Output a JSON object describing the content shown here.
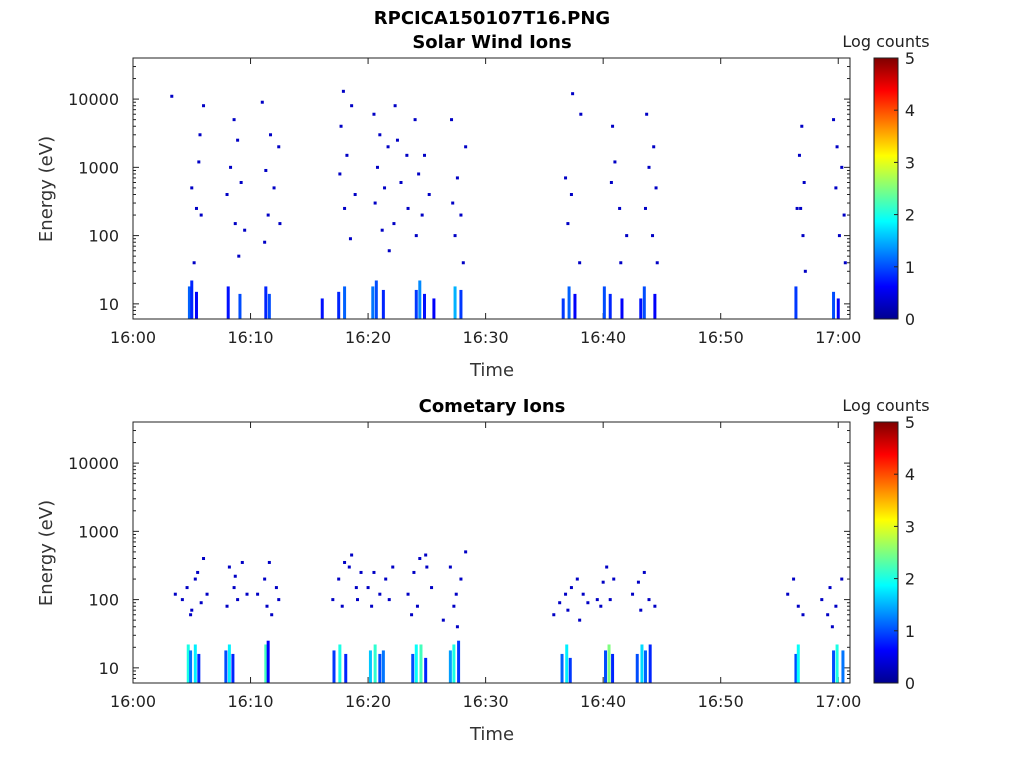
{
  "figure": {
    "filename": "RPCICA150107T16.PNG"
  },
  "colorbar": {
    "label": "Log counts",
    "ticks": [
      "0",
      "1",
      "2",
      "3",
      "4",
      "5"
    ],
    "colors": [
      "#00008f",
      "#0000ff",
      "#007fff",
      "#00ffff",
      "#7fff7f",
      "#ffff00",
      "#ff7f00",
      "#ff0000",
      "#7f0000"
    ]
  },
  "chart_data": [
    {
      "type": "heatmap",
      "title": "Solar Wind Ions",
      "xlabel": "Time",
      "ylabel": "Energy (eV)",
      "x_unit": "minutes after 16:00",
      "xlim": [
        0,
        61
      ],
      "ylim": [
        6,
        40000
      ],
      "y_scale": "log",
      "x_ticks": [
        "16:00",
        "16:10",
        "16:20",
        "16:30",
        "16:40",
        "16:50",
        "17:00"
      ],
      "y_ticks": [
        "10",
        "100",
        "1000",
        "10000"
      ],
      "clim": [
        0,
        5
      ],
      "scattered_points": [
        [
          3.3,
          11000,
          0.3
        ],
        [
          6.0,
          8000,
          0.3
        ],
        [
          5.7,
          3000,
          0.3
        ],
        [
          5.6,
          1200,
          0.3
        ],
        [
          5.0,
          500,
          0.3
        ],
        [
          5.4,
          250,
          0.3
        ],
        [
          5.8,
          200,
          0.3
        ],
        [
          5.2,
          40,
          0.3
        ],
        [
          8.6,
          5000,
          0.3
        ],
        [
          8.9,
          2500,
          0.3
        ],
        [
          8.3,
          1000,
          0.3
        ],
        [
          9.2,
          600,
          0.3
        ],
        [
          8.0,
          400,
          0.3
        ],
        [
          8.7,
          150,
          0.3
        ],
        [
          9.5,
          120,
          0.3
        ],
        [
          9.0,
          50,
          0.3
        ],
        [
          11.0,
          9000,
          0.3
        ],
        [
          11.7,
          3000,
          0.3
        ],
        [
          12.4,
          2000,
          0.3
        ],
        [
          11.3,
          900,
          0.3
        ],
        [
          12.0,
          500,
          0.3
        ],
        [
          11.5,
          200,
          0.3
        ],
        [
          12.5,
          150,
          0.3
        ],
        [
          11.2,
          80,
          0.3
        ],
        [
          17.9,
          13000,
          0.3
        ],
        [
          18.6,
          8000,
          0.3
        ],
        [
          17.7,
          4000,
          0.3
        ],
        [
          18.2,
          1500,
          0.3
        ],
        [
          17.6,
          800,
          0.3
        ],
        [
          18.9,
          400,
          0.3
        ],
        [
          18.0,
          250,
          0.3
        ],
        [
          18.5,
          90,
          0.3
        ],
        [
          20.5,
          6000,
          0.3
        ],
        [
          21.0,
          3000,
          0.3
        ],
        [
          21.7,
          2000,
          0.3
        ],
        [
          20.8,
          1000,
          0.3
        ],
        [
          21.4,
          500,
          0.3
        ],
        [
          20.6,
          300,
          0.3
        ],
        [
          21.2,
          120,
          0.3
        ],
        [
          21.8,
          60,
          0.3
        ],
        [
          22.3,
          8000,
          0.3
        ],
        [
          22.5,
          2500,
          0.3
        ],
        [
          23.3,
          1500,
          0.3
        ],
        [
          22.8,
          600,
          0.3
        ],
        [
          23.4,
          250,
          0.3
        ],
        [
          22.2,
          150,
          0.3
        ],
        [
          24.0,
          5000,
          0.3
        ],
        [
          24.8,
          1500,
          0.3
        ],
        [
          24.3,
          800,
          0.3
        ],
        [
          25.2,
          400,
          0.3
        ],
        [
          24.6,
          200,
          0.3
        ],
        [
          24.1,
          100,
          0.3
        ],
        [
          27.1,
          5000,
          0.3
        ],
        [
          28.3,
          2000,
          0.3
        ],
        [
          27.6,
          700,
          0.3
        ],
        [
          27.2,
          300,
          0.3
        ],
        [
          27.9,
          200,
          0.3
        ],
        [
          27.4,
          100,
          0.3
        ],
        [
          28.1,
          40,
          0.3
        ],
        [
          37.4,
          12000,
          0.3
        ],
        [
          38.1,
          6000,
          0.3
        ],
        [
          36.8,
          700,
          0.3
        ],
        [
          37.3,
          400,
          0.3
        ],
        [
          37.0,
          150,
          0.3
        ],
        [
          38.0,
          40,
          0.3
        ],
        [
          40.8,
          4000,
          0.3
        ],
        [
          41.0,
          1200,
          0.3
        ],
        [
          40.7,
          600,
          0.3
        ],
        [
          41.4,
          250,
          0.3
        ],
        [
          42.0,
          100,
          0.3
        ],
        [
          41.5,
          40,
          0.3
        ],
        [
          43.7,
          6000,
          0.3
        ],
        [
          44.3,
          2000,
          0.3
        ],
        [
          43.9,
          1000,
          0.3
        ],
        [
          44.5,
          500,
          0.3
        ],
        [
          43.6,
          250,
          0.3
        ],
        [
          44.2,
          100,
          0.3
        ],
        [
          44.6,
          40,
          0.3
        ],
        [
          56.5,
          250,
          0.3
        ],
        [
          56.9,
          4000,
          0.3
        ],
        [
          56.7,
          1500,
          0.3
        ],
        [
          57.1,
          600,
          0.3
        ],
        [
          56.8,
          250,
          0.3
        ],
        [
          57.0,
          100,
          0.3
        ],
        [
          57.2,
          30,
          0.3
        ],
        [
          59.6,
          5000,
          0.3
        ],
        [
          59.9,
          2000,
          0.3
        ],
        [
          60.3,
          1000,
          0.3
        ],
        [
          59.8,
          500,
          0.3
        ],
        [
          60.5,
          200,
          0.3
        ],
        [
          60.1,
          100,
          0.3
        ],
        [
          60.6,
          40,
          0.3
        ]
      ],
      "low_energy_bars": [
        [
          4.8,
          6,
          18,
          1.1
        ],
        [
          5.0,
          6,
          22,
          0.8
        ],
        [
          5.4,
          6,
          15,
          0.6
        ],
        [
          8.1,
          6,
          18,
          0.7
        ],
        [
          9.1,
          6,
          14,
          1.0
        ],
        [
          11.3,
          6,
          18,
          0.8
        ],
        [
          11.6,
          6,
          14,
          1.0
        ],
        [
          16.1,
          6,
          12,
          0.7
        ],
        [
          17.5,
          6,
          15,
          0.8
        ],
        [
          18.0,
          6,
          18,
          1.1
        ],
        [
          20.4,
          6,
          18,
          1.2
        ],
        [
          20.7,
          6,
          22,
          1.0
        ],
        [
          21.3,
          6,
          16,
          0.8
        ],
        [
          24.1,
          6,
          16,
          0.9
        ],
        [
          24.4,
          6,
          22,
          1.3
        ],
        [
          24.8,
          6,
          14,
          0.7
        ],
        [
          25.6,
          6,
          12,
          0.6
        ],
        [
          27.4,
          6,
          18,
          1.5
        ],
        [
          27.9,
          6,
          16,
          0.9
        ],
        [
          36.6,
          6,
          12,
          0.9
        ],
        [
          37.1,
          6,
          18,
          1.1
        ],
        [
          37.6,
          6,
          14,
          0.6
        ],
        [
          40.1,
          6,
          18,
          1.0
        ],
        [
          40.6,
          6,
          14,
          0.8
        ],
        [
          41.6,
          6,
          12,
          0.6
        ],
        [
          43.2,
          6,
          12,
          0.7
        ],
        [
          43.5,
          6,
          18,
          1.0
        ],
        [
          44.4,
          6,
          14,
          0.6
        ],
        [
          56.4,
          6,
          18,
          0.9
        ],
        [
          59.6,
          6,
          15,
          1.0
        ],
        [
          60.0,
          6,
          12,
          0.6
        ]
      ]
    },
    {
      "type": "heatmap",
      "title": "Cometary Ions",
      "xlabel": "Time",
      "ylabel": "Energy (eV)",
      "x_unit": "minutes after 16:00",
      "xlim": [
        0,
        61
      ],
      "ylim": [
        6,
        40000
      ],
      "y_scale": "log",
      "x_ticks": [
        "16:00",
        "16:10",
        "16:20",
        "16:30",
        "16:40",
        "16:50",
        "17:00"
      ],
      "y_ticks": [
        "10",
        "100",
        "1000",
        "10000"
      ],
      "clim": [
        0,
        5
      ],
      "scattered_points": [
        [
          3.6,
          120,
          0.3
        ],
        [
          4.2,
          100,
          0.3
        ],
        [
          4.6,
          150,
          0.3
        ],
        [
          5.0,
          70,
          0.3
        ],
        [
          5.5,
          250,
          0.3
        ],
        [
          6.0,
          400,
          0.3
        ],
        [
          6.3,
          120,
          0.3
        ],
        [
          5.8,
          90,
          0.3
        ],
        [
          4.9,
          60,
          0.3
        ],
        [
          5.3,
          200,
          0.3
        ],
        [
          8.2,
          300,
          0.3
        ],
        [
          8.6,
          150,
          0.3
        ],
        [
          8.9,
          100,
          0.3
        ],
        [
          9.3,
          350,
          0.3
        ],
        [
          9.7,
          120,
          0.3
        ],
        [
          8.0,
          80,
          0.3
        ],
        [
          8.7,
          220,
          0.3
        ],
        [
          10.6,
          120,
          0.3
        ],
        [
          11.2,
          200,
          0.3
        ],
        [
          11.6,
          350,
          0.3
        ],
        [
          12.2,
          150,
          0.3
        ],
        [
          11.4,
          80,
          0.3
        ],
        [
          12.4,
          100,
          0.3
        ],
        [
          11.8,
          60,
          0.3
        ],
        [
          17.0,
          100,
          0.3
        ],
        [
          17.5,
          200,
          0.3
        ],
        [
          18.0,
          350,
          0.3
        ],
        [
          18.6,
          450,
          0.3
        ],
        [
          19.0,
          150,
          0.3
        ],
        [
          19.4,
          250,
          0.3
        ],
        [
          17.8,
          80,
          0.3
        ],
        [
          18.4,
          300,
          0.3
        ],
        [
          19.1,
          100,
          0.3
        ],
        [
          20.0,
          150,
          0.3
        ],
        [
          20.5,
          250,
          0.3
        ],
        [
          21.0,
          120,
          0.3
        ],
        [
          21.5,
          200,
          0.3
        ],
        [
          22.1,
          300,
          0.3
        ],
        [
          21.8,
          100,
          0.3
        ],
        [
          20.3,
          80,
          0.3
        ],
        [
          23.4,
          120,
          0.3
        ],
        [
          23.9,
          250,
          0.3
        ],
        [
          24.4,
          400,
          0.3
        ],
        [
          24.9,
          450,
          0.3
        ],
        [
          25.4,
          150,
          0.3
        ],
        [
          24.2,
          80,
          0.3
        ],
        [
          25.0,
          300,
          0.3
        ],
        [
          23.7,
          60,
          0.3
        ],
        [
          27.0,
          300,
          0.3
        ],
        [
          27.5,
          120,
          0.3
        ],
        [
          27.9,
          200,
          0.3
        ],
        [
          28.3,
          500,
          0.3
        ],
        [
          27.3,
          80,
          0.3
        ],
        [
          26.4,
          50,
          0.3
        ],
        [
          27.6,
          40,
          0.3
        ],
        [
          35.8,
          60,
          0.3
        ],
        [
          36.3,
          90,
          0.3
        ],
        [
          36.8,
          120,
          0.3
        ],
        [
          37.3,
          150,
          0.3
        ],
        [
          37.8,
          200,
          0.3
        ],
        [
          38.3,
          120,
          0.3
        ],
        [
          38.7,
          90,
          0.3
        ],
        [
          37.0,
          70,
          0.3
        ],
        [
          38.0,
          50,
          0.3
        ],
        [
          39.5,
          100,
          0.3
        ],
        [
          40.0,
          180,
          0.3
        ],
        [
          40.3,
          300,
          0.3
        ],
        [
          40.9,
          200,
          0.3
        ],
        [
          39.8,
          80,
          0.3
        ],
        [
          40.6,
          100,
          0.3
        ],
        [
          42.5,
          120,
          0.3
        ],
        [
          43.0,
          180,
          0.3
        ],
        [
          43.5,
          250,
          0.3
        ],
        [
          43.9,
          100,
          0.3
        ],
        [
          44.4,
          80,
          0.3
        ],
        [
          43.2,
          70,
          0.3
        ],
        [
          55.7,
          120,
          0.3
        ],
        [
          56.2,
          200,
          0.3
        ],
        [
          56.6,
          80,
          0.3
        ],
        [
          57.0,
          60,
          0.3
        ],
        [
          58.6,
          100,
          0.3
        ],
        [
          59.3,
          150,
          0.3
        ],
        [
          59.8,
          80,
          0.3
        ],
        [
          60.3,
          200,
          0.3
        ],
        [
          59.1,
          60,
          0.3
        ],
        [
          59.5,
          40,
          0.3
        ]
      ],
      "low_energy_bars": [
        [
          4.7,
          6,
          22,
          2.0
        ],
        [
          4.9,
          6,
          18,
          1.2
        ],
        [
          5.3,
          6,
          22,
          1.8
        ],
        [
          5.6,
          6,
          16,
          0.8
        ],
        [
          7.9,
          6,
          18,
          1.0
        ],
        [
          8.2,
          6,
          22,
          1.8
        ],
        [
          8.5,
          6,
          16,
          0.8
        ],
        [
          11.3,
          6,
          22,
          2.2
        ],
        [
          11.5,
          6,
          25,
          0.6
        ],
        [
          17.1,
          6,
          18,
          0.9
        ],
        [
          17.6,
          6,
          22,
          2.0
        ],
        [
          18.1,
          6,
          16,
          0.8
        ],
        [
          20.2,
          6,
          18,
          1.6
        ],
        [
          20.6,
          6,
          22,
          2.1
        ],
        [
          21.0,
          6,
          16,
          1.0
        ],
        [
          21.3,
          6,
          18,
          1.2
        ],
        [
          23.8,
          6,
          16,
          1.0
        ],
        [
          24.1,
          6,
          22,
          1.9
        ],
        [
          24.5,
          6,
          22,
          2.2
        ],
        [
          24.9,
          6,
          14,
          0.8
        ],
        [
          27.0,
          6,
          18,
          1.4
        ],
        [
          27.3,
          6,
          22,
          2.0
        ],
        [
          27.7,
          6,
          25,
          0.9
        ],
        [
          36.5,
          6,
          16,
          1.1
        ],
        [
          36.9,
          6,
          22,
          1.8
        ],
        [
          37.2,
          6,
          14,
          0.9
        ],
        [
          40.2,
          6,
          18,
          1.0
        ],
        [
          40.5,
          6,
          22,
          2.5
        ],
        [
          40.8,
          6,
          16,
          0.8
        ],
        [
          42.9,
          6,
          16,
          1.0
        ],
        [
          43.3,
          6,
          22,
          1.7
        ],
        [
          43.6,
          6,
          18,
          1.1
        ],
        [
          44.0,
          6,
          22,
          0.8
        ],
        [
          56.4,
          6,
          16,
          1.0
        ],
        [
          56.6,
          6,
          22,
          1.9
        ],
        [
          59.6,
          6,
          18,
          1.0
        ],
        [
          59.9,
          6,
          22,
          2.0
        ],
        [
          60.4,
          6,
          18,
          1.2
        ]
      ]
    }
  ]
}
